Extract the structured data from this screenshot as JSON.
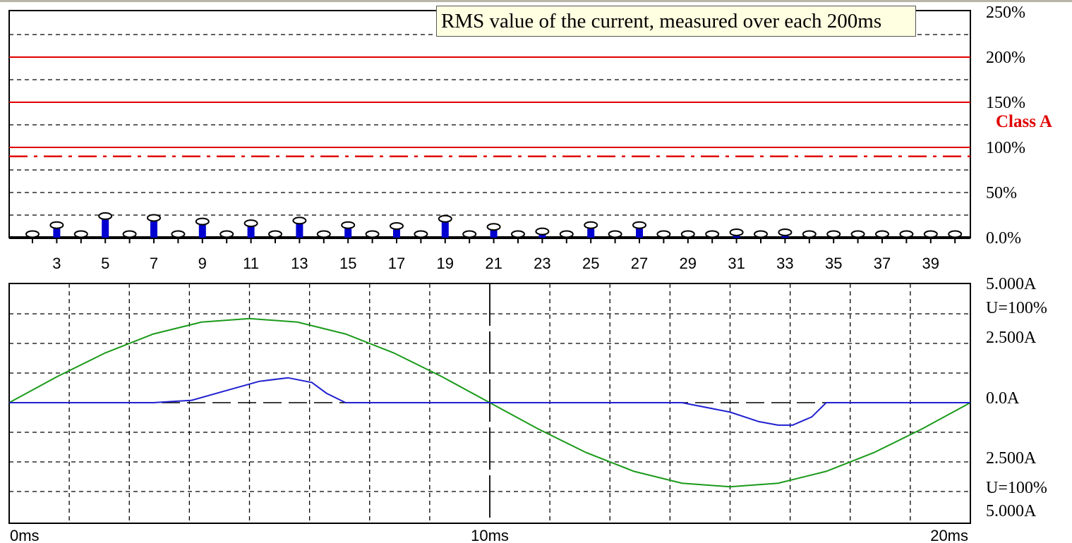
{
  "tooltip": "RMS value of the current, measured over each 200ms",
  "chart_data": [
    {
      "type": "bar",
      "name": "harmonics",
      "y_ticks": [
        "250%",
        "200%",
        "150%",
        "100%",
        "50%",
        "0.0%"
      ],
      "ylim": [
        0,
        250
      ],
      "x_labels": [
        3,
        5,
        7,
        9,
        11,
        13,
        15,
        17,
        19,
        21,
        23,
        25,
        27,
        29,
        31,
        33,
        35,
        37,
        39
      ],
      "harmonic_orders": [
        2,
        3,
        4,
        5,
        6,
        7,
        8,
        9,
        10,
        11,
        12,
        13,
        14,
        15,
        16,
        17,
        18,
        19,
        20,
        21,
        22,
        23,
        24,
        25,
        26,
        27,
        28,
        29,
        30,
        31,
        32,
        33,
        34,
        35,
        36,
        37,
        38,
        39,
        40
      ],
      "values": [
        0,
        10,
        0,
        20,
        0,
        18,
        0,
        14,
        0,
        12,
        0,
        15,
        0,
        10,
        0,
        9,
        0,
        17,
        0,
        8,
        0,
        3,
        0,
        10,
        0,
        10,
        0,
        0,
        0,
        2,
        0,
        2,
        0,
        0,
        0,
        0,
        0,
        0,
        0
      ],
      "limit_lines": [
        200,
        150,
        100
      ],
      "class_limit_line": 90,
      "class_label": "Class A",
      "colors": {
        "bar": "#0000d0",
        "limit": "#e00000",
        "marker": "#000000"
      },
      "grid": true
    },
    {
      "type": "line",
      "name": "waveform",
      "x_labels": [
        "0ms",
        "10ms",
        "20ms"
      ],
      "xlim": [
        0,
        20
      ],
      "ylim": [
        -5,
        5
      ],
      "y_labels": [
        "5.000A",
        "U=100%",
        "2.500A",
        "0.0A",
        "2.500A",
        "U=100%",
        "5.000A"
      ],
      "series": [
        {
          "color": "#1a9a1a",
          "x": [
            0,
            1,
            2,
            3,
            4,
            5,
            6,
            7,
            8,
            9,
            10,
            11,
            12,
            13,
            14,
            15,
            16,
            17,
            18,
            19,
            20
          ],
          "y": [
            0,
            1.1,
            2.1,
            2.9,
            3.4,
            3.55,
            3.4,
            2.9,
            2.1,
            1.1,
            0,
            -1.1,
            -2.1,
            -2.9,
            -3.4,
            -3.55,
            -3.4,
            -2.9,
            -2.1,
            -1.1,
            0
          ]
        },
        {
          "color": "#2020d0",
          "x": [
            0,
            1,
            2,
            3,
            3.8,
            4.5,
            5.2,
            5.8,
            6.3,
            6.6,
            7,
            8,
            9,
            10,
            11,
            12,
            13,
            14,
            15,
            15.6,
            16,
            16.3,
            16.7,
            17,
            17.6,
            19,
            20
          ],
          "y": [
            0,
            0,
            0,
            0,
            0.1,
            0.5,
            0.9,
            1.05,
            0.85,
            0.4,
            0,
            0,
            0,
            0,
            0,
            0,
            0,
            0,
            -0.4,
            -0.8,
            -0.95,
            -0.95,
            -0.6,
            0,
            0,
            0,
            0
          ]
        }
      ],
      "center_marker": 10,
      "grid": true
    }
  ]
}
